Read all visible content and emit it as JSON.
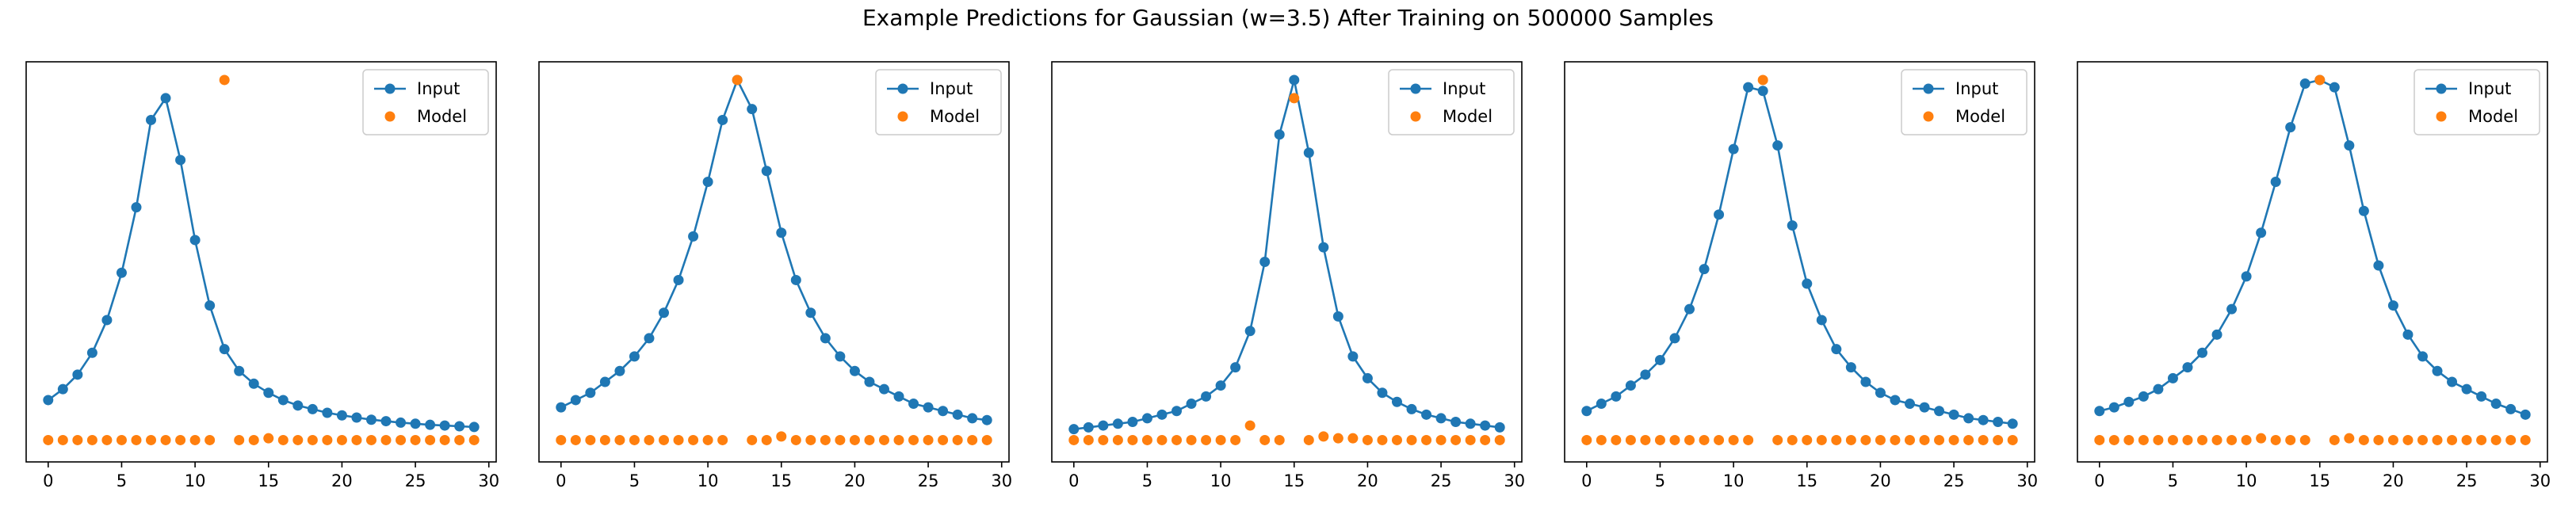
{
  "figure": {
    "title": "Example Predictions for Gaussian (w=3.5) After Training on 500000 Samples"
  },
  "colors": {
    "input": "#1f77b4",
    "model": "#ff7f0e",
    "axis": "#000000"
  },
  "chart_data": [
    {
      "type": "scatter",
      "xlim": [
        -1.5,
        30.5
      ],
      "ylim": [
        -0.05,
        1.05
      ],
      "xticks": [
        0,
        5,
        10,
        15,
        20,
        25,
        30
      ],
      "legend": {
        "position": "top-right",
        "entries": [
          "Input",
          "Model"
        ]
      },
      "series": [
        {
          "name": "Input",
          "style": "line-marker",
          "x": [
            0,
            1,
            2,
            3,
            4,
            5,
            6,
            7,
            8,
            9,
            10,
            11,
            12,
            13,
            14,
            15,
            16,
            17,
            18,
            19,
            20,
            21,
            22,
            23,
            24,
            25,
            26,
            27,
            28,
            29
          ],
          "y": [
            0.12,
            0.15,
            0.19,
            0.25,
            0.34,
            0.47,
            0.65,
            0.89,
            0.95,
            0.78,
            0.56,
            0.38,
            0.26,
            0.2,
            0.165,
            0.14,
            0.12,
            0.105,
            0.095,
            0.085,
            0.078,
            0.072,
            0.066,
            0.062,
            0.058,
            0.055,
            0.052,
            0.05,
            0.048,
            0.046
          ]
        },
        {
          "name": "Model",
          "style": "marker",
          "x": [
            0,
            1,
            2,
            3,
            4,
            5,
            6,
            7,
            8,
            9,
            10,
            11,
            12,
            13,
            14,
            15,
            16,
            17,
            18,
            19,
            20,
            21,
            22,
            23,
            24,
            25,
            26,
            27,
            28,
            29
          ],
          "y": [
            0.01,
            0.01,
            0.01,
            0.01,
            0.01,
            0.01,
            0.01,
            0.01,
            0.01,
            0.01,
            0.01,
            0.01,
            1.0,
            0.01,
            0.01,
            0.015,
            0.01,
            0.01,
            0.01,
            0.01,
            0.01,
            0.01,
            0.01,
            0.01,
            0.01,
            0.01,
            0.01,
            0.01,
            0.01,
            0.01
          ]
        }
      ]
    },
    {
      "type": "scatter",
      "xlim": [
        -1.5,
        30.5
      ],
      "ylim": [
        -0.05,
        1.05
      ],
      "xticks": [
        0,
        5,
        10,
        15,
        20,
        25,
        30
      ],
      "legend": {
        "position": "top-right",
        "entries": [
          "Input",
          "Model"
        ]
      },
      "series": [
        {
          "name": "Input",
          "style": "line-marker",
          "x": [
            0,
            1,
            2,
            3,
            4,
            5,
            6,
            7,
            8,
            9,
            10,
            11,
            12,
            13,
            14,
            15,
            16,
            17,
            18,
            19,
            20,
            21,
            22,
            23,
            24,
            25,
            26,
            27,
            28,
            29
          ],
          "y": [
            0.1,
            0.12,
            0.14,
            0.17,
            0.2,
            0.24,
            0.29,
            0.36,
            0.45,
            0.57,
            0.72,
            0.89,
            1.0,
            0.92,
            0.75,
            0.58,
            0.45,
            0.36,
            0.29,
            0.24,
            0.2,
            0.17,
            0.15,
            0.13,
            0.11,
            0.1,
            0.09,
            0.08,
            0.07,
            0.065
          ]
        },
        {
          "name": "Model",
          "style": "marker",
          "x": [
            0,
            1,
            2,
            3,
            4,
            5,
            6,
            7,
            8,
            9,
            10,
            11,
            12,
            13,
            14,
            15,
            16,
            17,
            18,
            19,
            20,
            21,
            22,
            23,
            24,
            25,
            26,
            27,
            28,
            29
          ],
          "y": [
            0.01,
            0.01,
            0.01,
            0.01,
            0.01,
            0.01,
            0.01,
            0.01,
            0.01,
            0.01,
            0.01,
            0.01,
            1.0,
            0.01,
            0.01,
            0.02,
            0.01,
            0.01,
            0.01,
            0.01,
            0.01,
            0.01,
            0.01,
            0.01,
            0.01,
            0.01,
            0.01,
            0.01,
            0.01,
            0.01
          ]
        }
      ]
    },
    {
      "type": "scatter",
      "xlim": [
        -1.5,
        30.5
      ],
      "ylim": [
        -0.05,
        1.05
      ],
      "xticks": [
        0,
        5,
        10,
        15,
        20,
        25,
        30
      ],
      "legend": {
        "position": "top-right",
        "entries": [
          "Input",
          "Model"
        ]
      },
      "series": [
        {
          "name": "Input",
          "style": "line-marker",
          "x": [
            0,
            1,
            2,
            3,
            4,
            5,
            6,
            7,
            8,
            9,
            10,
            11,
            12,
            13,
            14,
            15,
            16,
            17,
            18,
            19,
            20,
            21,
            22,
            23,
            24,
            25,
            26,
            27,
            28,
            29
          ],
          "y": [
            0.04,
            0.045,
            0.05,
            0.055,
            0.06,
            0.07,
            0.08,
            0.09,
            0.11,
            0.13,
            0.16,
            0.21,
            0.31,
            0.5,
            0.85,
            1.0,
            0.8,
            0.54,
            0.35,
            0.24,
            0.18,
            0.14,
            0.115,
            0.095,
            0.08,
            0.07,
            0.06,
            0.055,
            0.05,
            0.045
          ]
        },
        {
          "name": "Model",
          "style": "marker",
          "x": [
            0,
            1,
            2,
            3,
            4,
            5,
            6,
            7,
            8,
            9,
            10,
            11,
            12,
            13,
            14,
            15,
            16,
            17,
            18,
            19,
            20,
            21,
            22,
            23,
            24,
            25,
            26,
            27,
            28,
            29
          ],
          "y": [
            0.01,
            0.01,
            0.01,
            0.01,
            0.01,
            0.01,
            0.01,
            0.01,
            0.01,
            0.01,
            0.01,
            0.01,
            0.05,
            0.01,
            0.01,
            0.95,
            0.01,
            0.02,
            0.015,
            0.015,
            0.01,
            0.01,
            0.01,
            0.01,
            0.01,
            0.01,
            0.01,
            0.01,
            0.01,
            0.01
          ]
        }
      ]
    },
    {
      "type": "scatter",
      "xlim": [
        -1.5,
        30.5
      ],
      "ylim": [
        -0.05,
        1.05
      ],
      "xticks": [
        0,
        5,
        10,
        15,
        20,
        25,
        30
      ],
      "legend": {
        "position": "top-right",
        "entries": [
          "Input",
          "Model"
        ]
      },
      "series": [
        {
          "name": "Input",
          "style": "line-marker",
          "x": [
            0,
            1,
            2,
            3,
            4,
            5,
            6,
            7,
            8,
            9,
            10,
            11,
            12,
            13,
            14,
            15,
            16,
            17,
            18,
            19,
            20,
            21,
            22,
            23,
            24,
            25,
            26,
            27,
            28,
            29
          ],
          "y": [
            0.09,
            0.11,
            0.13,
            0.16,
            0.19,
            0.23,
            0.29,
            0.37,
            0.48,
            0.63,
            0.81,
            0.98,
            0.97,
            0.82,
            0.6,
            0.44,
            0.34,
            0.26,
            0.21,
            0.17,
            0.14,
            0.12,
            0.11,
            0.1,
            0.09,
            0.08,
            0.07,
            0.065,
            0.06,
            0.055
          ]
        },
        {
          "name": "Model",
          "style": "marker",
          "x": [
            0,
            1,
            2,
            3,
            4,
            5,
            6,
            7,
            8,
            9,
            10,
            11,
            12,
            13,
            14,
            15,
            16,
            17,
            18,
            19,
            20,
            21,
            22,
            23,
            24,
            25,
            26,
            27,
            28,
            29
          ],
          "y": [
            0.01,
            0.01,
            0.01,
            0.01,
            0.01,
            0.01,
            0.01,
            0.01,
            0.01,
            0.01,
            0.01,
            0.01,
            1.0,
            0.01,
            0.01,
            0.01,
            0.01,
            0.01,
            0.01,
            0.01,
            0.01,
            0.01,
            0.01,
            0.01,
            0.01,
            0.01,
            0.01,
            0.01,
            0.01,
            0.01
          ]
        }
      ]
    },
    {
      "type": "scatter",
      "xlim": [
        -1.5,
        30.5
      ],
      "ylim": [
        -0.05,
        1.05
      ],
      "xticks": [
        0,
        5,
        10,
        15,
        20,
        25,
        30
      ],
      "legend": {
        "position": "top-right",
        "entries": [
          "Input",
          "Model"
        ]
      },
      "series": [
        {
          "name": "Input",
          "style": "line-marker",
          "x": [
            0,
            1,
            2,
            3,
            4,
            5,
            6,
            7,
            8,
            9,
            10,
            11,
            12,
            13,
            14,
            15,
            16,
            17,
            18,
            19,
            20,
            21,
            22,
            23,
            24,
            25,
            26,
            27,
            28,
            29
          ],
          "y": [
            0.09,
            0.1,
            0.115,
            0.13,
            0.15,
            0.18,
            0.21,
            0.25,
            0.3,
            0.37,
            0.46,
            0.58,
            0.72,
            0.87,
            0.99,
            1.0,
            0.98,
            0.82,
            0.64,
            0.49,
            0.38,
            0.3,
            0.24,
            0.2,
            0.17,
            0.15,
            0.13,
            0.11,
            0.095,
            0.08
          ]
        },
        {
          "name": "Model",
          "style": "marker",
          "x": [
            0,
            1,
            2,
            3,
            4,
            5,
            6,
            7,
            8,
            9,
            10,
            11,
            12,
            13,
            14,
            15,
            16,
            17,
            18,
            19,
            20,
            21,
            22,
            23,
            24,
            25,
            26,
            27,
            28,
            29
          ],
          "y": [
            0.01,
            0.01,
            0.01,
            0.01,
            0.01,
            0.01,
            0.01,
            0.01,
            0.01,
            0.01,
            0.01,
            0.015,
            0.01,
            0.01,
            0.01,
            1.0,
            0.01,
            0.015,
            0.01,
            0.01,
            0.01,
            0.01,
            0.01,
            0.01,
            0.01,
            0.01,
            0.01,
            0.01,
            0.01,
            0.01
          ]
        }
      ]
    }
  ]
}
